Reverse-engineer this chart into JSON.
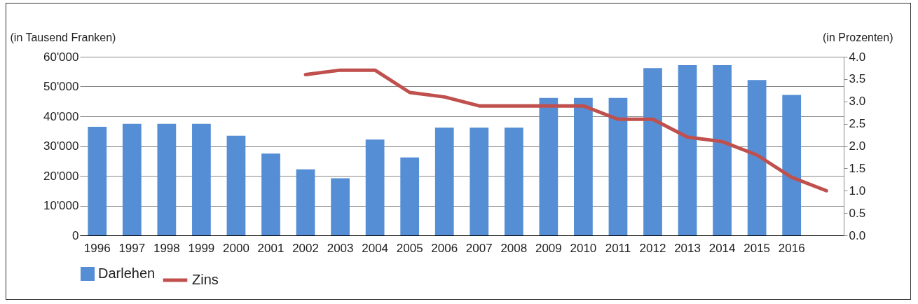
{
  "chart_data": {
    "type": "bar",
    "ylabel": "(in Tausend Franken)",
    "y2label": "(in Prozenten)",
    "categories": [
      "1996",
      "1997",
      "1998",
      "1999",
      "2000",
      "2001",
      "2002",
      "2003",
      "2004",
      "2005",
      "2006",
      "2007",
      "2008",
      "2009",
      "2010",
      "2011",
      "2012",
      "2013",
      "2014",
      "2015",
      "2016",
      null
    ],
    "series": [
      {
        "name": "Darlehen",
        "color": "#558ed5",
        "values": [
          36500,
          37500,
          37500,
          37500,
          33500,
          27500,
          22200,
          19200,
          32200,
          26200,
          36200,
          36200,
          36200,
          46200,
          46200,
          46200,
          56200,
          57200,
          57200,
          52200,
          47200,
          null
        ]
      },
      {
        "name": "Zins",
        "type": "line",
        "axis": "y2",
        "color": "#c0504d",
        "values": [
          null,
          null,
          null,
          null,
          null,
          null,
          3.6,
          3.7,
          3.7,
          3.2,
          3.1,
          2.9,
          2.9,
          2.9,
          2.9,
          2.6,
          2.6,
          2.2,
          2.1,
          1.8,
          1.3,
          1.0
        ]
      }
    ],
    "ylim": [
      0,
      60000
    ],
    "yticks": [
      {
        "value": 0,
        "label": "0"
      },
      {
        "value": 10000,
        "label": "10'000"
      },
      {
        "value": 20000,
        "label": "20'000"
      },
      {
        "value": 30000,
        "label": "30'000"
      },
      {
        "value": 40000,
        "label": "40'000"
      },
      {
        "value": 50000,
        "label": "50'000"
      },
      {
        "value": 60000,
        "label": "60'000"
      }
    ],
    "y2lim": [
      0,
      4
    ],
    "y2ticks": [
      {
        "value": 0,
        "label": "0.0"
      },
      {
        "value": 0.5,
        "label": "0.5"
      },
      {
        "value": 1,
        "label": "1.0"
      },
      {
        "value": 1.5,
        "label": "1.5"
      },
      {
        "value": 2,
        "label": "2.0"
      },
      {
        "value": 2.5,
        "label": "2.5"
      },
      {
        "value": 3,
        "label": "3.0"
      },
      {
        "value": 3.5,
        "label": "3.5"
      },
      {
        "value": 4,
        "label": "4.0"
      }
    ],
    "grid": "y",
    "legend": "bottom",
    "marker": "none",
    "line_style": "solid"
  }
}
